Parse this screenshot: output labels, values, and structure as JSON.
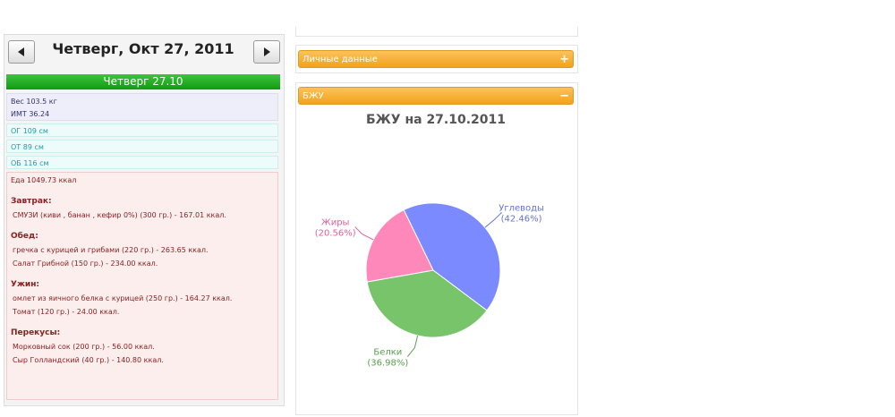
{
  "left": {
    "date_title": "Четверг, Окт 27, 2011",
    "day_header": "Четверг 27.10",
    "weight": "Вес 103.5 кг",
    "bmi": "ИМТ 36.24",
    "measures": [
      "ОГ 109 см",
      "ОТ 89 см",
      "ОБ 116 см"
    ],
    "food_total": "Еда 1049.73 ккал",
    "meals": [
      {
        "name": "Завтрак:",
        "items": [
          "СМУЗИ (киви , банан , кефир 0%) (300 гр.) - 167.01 ккал."
        ]
      },
      {
        "name": "Обед:",
        "items": [
          "гречка с курицей и грибами (220 гр.) - 263.65 ккал.",
          "Салат Грибной (150 гр.) - 234.00 ккал."
        ]
      },
      {
        "name": "Ужин:",
        "items": [
          "омлет из яичного белка с курицей (250 гр.) - 164.27 ккал.",
          "Томат (120 гр.) - 24.00 ккал."
        ]
      },
      {
        "name": "Перекусы:",
        "items": [
          "Морковный сок (200 гр.) - 56.00 ккал.",
          "Сыр Голландский (40 гр.) - 140.80 ккал."
        ]
      }
    ]
  },
  "right": {
    "personal_panel": "Личные данные",
    "bju_panel": "БЖУ"
  },
  "chart_data": {
    "type": "pie",
    "title": "БЖУ на 27.10.2011",
    "categories": [
      "Углеводы",
      "Белки",
      "Жиры"
    ],
    "values": [
      42.46,
      36.98,
      20.56
    ],
    "value_labels": [
      "(42.46%)",
      "(36.98%)",
      "(20.56%)"
    ],
    "colors": [
      "#7b8bff",
      "#77c46b",
      "#ff88bb"
    ]
  }
}
